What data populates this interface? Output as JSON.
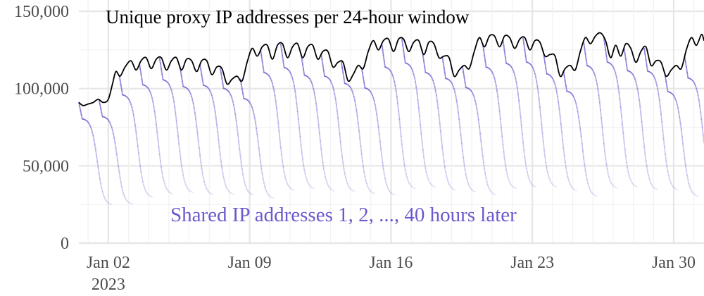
{
  "chart_data": {
    "type": "line",
    "title": "",
    "xlabel": "",
    "ylabel": "",
    "ylim": [
      0,
      150000
    ],
    "xlim": [
      "2022-12-31T13:00",
      "2023-01-31T12:00"
    ],
    "grid": true,
    "legend": "none",
    "y_ticks": [
      {
        "value": 0,
        "label": "0"
      },
      {
        "value": 50000,
        "label": "50,000"
      },
      {
        "value": 100000,
        "label": "100,000"
      },
      {
        "value": 150000,
        "label": "150,000"
      }
    ],
    "x_ticks": [
      {
        "date": "2023-01-02",
        "label": "Jan 02",
        "sublabel": "2023"
      },
      {
        "date": "2023-01-09",
        "label": "Jan 09",
        "sublabel": ""
      },
      {
        "date": "2023-01-16",
        "label": "Jan 16",
        "sublabel": ""
      },
      {
        "date": "2023-01-23",
        "label": "Jan 23",
        "sublabel": ""
      },
      {
        "date": "2023-01-30",
        "label": "Jan 30",
        "sublabel": ""
      }
    ],
    "annotations": [
      {
        "text": "Unique proxy IP addresses per 24-hour window",
        "color": "#000000",
        "series": "unique"
      },
      {
        "text": "Shared IP addresses 1, 2, ..., 40 hours later",
        "color": "#6a5acd",
        "series": "shared"
      }
    ],
    "series": [
      {
        "color": "#000000",
        "x": [
          "2022-12-31T13:00",
          "2022-12-31T18:00",
          "2023-01-01T00:00",
          "2023-01-01T06:00",
          "2023-01-01T12:00",
          "2023-01-01T18:00",
          "2023-01-02T00:00",
          "2023-01-02T05:00",
          "2023-01-02T09:00",
          "2023-01-02T14:00",
          "2023-01-02T20:00",
          "2023-01-03T03:00",
          "2023-01-03T09:00",
          "2023-01-03T15:00",
          "2023-01-03T21:00",
          "2023-01-04T03:00",
          "2023-01-04T09:00",
          "2023-01-04T15:00",
          "2023-01-04T21:00",
          "2023-01-05T03:00",
          "2023-01-05T09:00",
          "2023-01-05T15:00",
          "2023-01-05T21:00",
          "2023-01-06T03:00",
          "2023-01-06T09:00",
          "2023-01-06T15:00",
          "2023-01-06T21:00",
          "2023-01-07T03:00",
          "2023-01-07T09:00",
          "2023-01-07T15:00",
          "2023-01-07T21:00",
          "2023-01-08T03:00",
          "2023-01-08T09:00",
          "2023-01-08T15:00",
          "2023-01-08T21:00",
          "2023-01-09T03:00",
          "2023-01-09T09:00",
          "2023-01-09T15:00",
          "2023-01-09T21:00",
          "2023-01-10T03:00",
          "2023-01-10T09:00",
          "2023-01-10T15:00",
          "2023-01-10T21:00",
          "2023-01-11T03:00",
          "2023-01-11T09:00",
          "2023-01-11T15:00",
          "2023-01-11T21:00",
          "2023-01-12T03:00",
          "2023-01-12T09:00",
          "2023-01-12T15:00",
          "2023-01-12T21:00",
          "2023-01-13T03:00",
          "2023-01-13T09:00",
          "2023-01-13T15:00",
          "2023-01-13T21:00",
          "2023-01-14T03:00",
          "2023-01-14T09:00",
          "2023-01-14T15:00",
          "2023-01-14T21:00",
          "2023-01-15T03:00",
          "2023-01-15T09:00",
          "2023-01-15T15:00",
          "2023-01-15T21:00",
          "2023-01-16T03:00",
          "2023-01-16T09:00",
          "2023-01-16T15:00",
          "2023-01-16T21:00",
          "2023-01-17T03:00",
          "2023-01-17T09:00",
          "2023-01-17T15:00",
          "2023-01-17T21:00",
          "2023-01-18T03:00",
          "2023-01-18T09:00",
          "2023-01-18T15:00",
          "2023-01-18T21:00",
          "2023-01-19T03:00",
          "2023-01-19T09:00",
          "2023-01-19T15:00",
          "2023-01-19T21:00",
          "2023-01-20T03:00",
          "2023-01-20T09:00",
          "2023-01-20T15:00",
          "2023-01-20T21:00",
          "2023-01-21T03:00",
          "2023-01-21T09:00",
          "2023-01-21T15:00",
          "2023-01-21T21:00",
          "2023-01-22T03:00",
          "2023-01-22T09:00",
          "2023-01-22T15:00",
          "2023-01-22T21:00",
          "2023-01-23T03:00",
          "2023-01-23T09:00",
          "2023-01-23T15:00",
          "2023-01-23T21:00",
          "2023-01-24T03:00",
          "2023-01-24T09:00",
          "2023-01-24T15:00",
          "2023-01-24T21:00",
          "2023-01-25T03:00",
          "2023-01-25T09:00",
          "2023-01-25T15:00",
          "2023-01-25T21:00",
          "2023-01-26T03:00",
          "2023-01-26T09:00",
          "2023-01-26T15:00",
          "2023-01-26T21:00",
          "2023-01-27T03:00",
          "2023-01-27T09:00",
          "2023-01-27T15:00",
          "2023-01-27T21:00",
          "2023-01-28T03:00",
          "2023-01-28T09:00",
          "2023-01-28T15:00",
          "2023-01-28T21:00",
          "2023-01-29T03:00",
          "2023-01-29T09:00",
          "2023-01-29T15:00",
          "2023-01-29T21:00",
          "2023-01-30T03:00",
          "2023-01-30T09:00",
          "2023-01-30T15:00",
          "2023-01-30T21:00",
          "2023-01-31T03:00",
          "2023-01-31T09:00",
          "2023-01-31T12:00"
        ],
        "values": [
          91000,
          89000,
          90000,
          91000,
          93000,
          91000,
          93000,
          103000,
          111000,
          108000,
          114000,
          118000,
          112000,
          118000,
          120000,
          113000,
          119000,
          120000,
          112000,
          118000,
          120000,
          112000,
          119000,
          118000,
          111000,
          118000,
          118000,
          109000,
          114000,
          113000,
          103000,
          106000,
          108000,
          105000,
          117000,
          126000,
          121000,
          127000,
          128000,
          119000,
          128000,
          129000,
          120000,
          127000,
          129000,
          120000,
          127000,
          128000,
          119000,
          124000,
          124000,
          114000,
          117000,
          117000,
          105000,
          109000,
          115000,
          113000,
          124000,
          131000,
          125000,
          131000,
          132000,
          124000,
          132000,
          132000,
          124000,
          130000,
          131000,
          122000,
          130000,
          129000,
          120000,
          121000,
          120000,
          108000,
          112000,
          115000,
          113000,
          124000,
          133000,
          127000,
          134000,
          134000,
          127000,
          134000,
          133000,
          126000,
          132000,
          133000,
          125000,
          131000,
          130000,
          121000,
          122000,
          121000,
          108000,
          113000,
          115000,
          112000,
          124000,
          133000,
          129000,
          134000,
          136000,
          131000,
          120000,
          128000,
          121000,
          129000,
          126000,
          117000,
          124000,
          127000,
          115000,
          118000,
          117000,
          108000,
          112000,
          115000,
          113000,
          125000,
          133000,
          128000,
          135000,
          131000
        ]
      }
    ]
  }
}
